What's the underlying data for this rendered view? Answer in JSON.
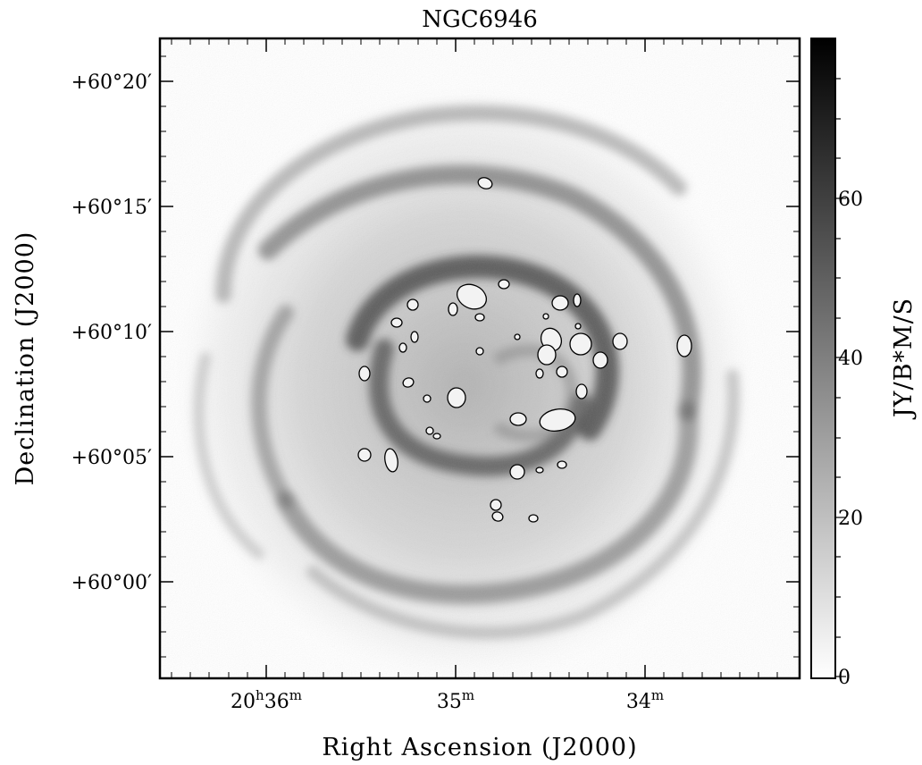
{
  "figure": {
    "title": "NGC6946",
    "xlabel": "Right Ascension (J2000)",
    "ylabel": "Declination (J2000)",
    "colorbar_label": "JY/B*M/S",
    "ra_ticks": [
      {
        "h": "20",
        "hsup": "h",
        "m": "36",
        "msup": "m"
      },
      {
        "h": "",
        "hsup": "",
        "m": "35",
        "msup": "m"
      },
      {
        "h": "",
        "hsup": "",
        "m": "34",
        "msup": "m"
      }
    ],
    "dec_ticks": [
      "+60°20′",
      "+60°15′",
      "+60°10′",
      "+60°05′",
      "+60°00′"
    ],
    "colorbar_ticks": [
      "60",
      "40",
      "20",
      "0"
    ],
    "colorbar_range": [
      0,
      78
    ],
    "colormap": "greyscale (white = 0, black = max)",
    "overlay": "black-outlined light ellipses marking holes in the spiral galaxy gas distribution"
  }
}
